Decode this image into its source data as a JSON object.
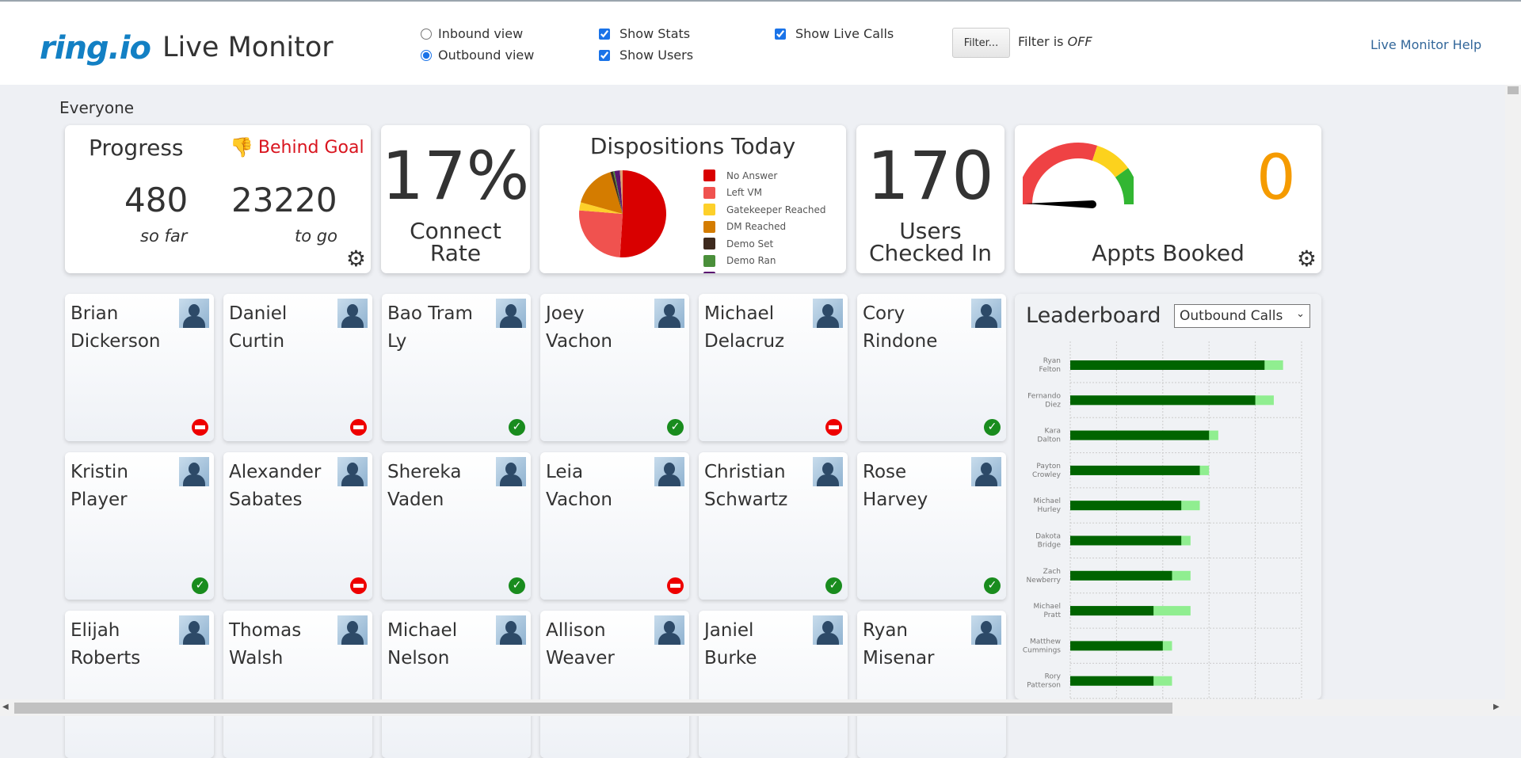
{
  "header": {
    "logo": "ring.io",
    "title": "Live Monitor",
    "inbound_label": "Inbound view",
    "outbound_label": "Outbound view",
    "view_selected": "outbound",
    "show_stats_label": "Show Stats",
    "show_users_label": "Show Users",
    "show_live_calls_label": "Show Live Calls",
    "show_stats": true,
    "show_users": true,
    "show_live_calls": true,
    "filter_button": "Filter...",
    "filter_status_prefix": "Filter is",
    "filter_status_value": "OFF",
    "help_link": "Live Monitor Help"
  },
  "group_label": "Everyone",
  "progress": {
    "title": "Progress",
    "status": "Behind Goal",
    "so_far": "480",
    "so_far_label": "so far",
    "to_go": "23220",
    "to_go_label": "to go",
    "status_color": "#d9141e"
  },
  "connect_rate": {
    "value": "17%",
    "label_line1": "Connect",
    "label_line2": "Rate"
  },
  "dispositions": {
    "title": "Dispositions Today"
  },
  "users_checked_in": {
    "value": "170",
    "label_line1": "Users",
    "label_line2": "Checked In"
  },
  "appts": {
    "value": "0",
    "label": "Appts Booked",
    "value_color": "#f59b00",
    "gauge_level": 0
  },
  "chart_data": [
    {
      "type": "pie",
      "title": "Dispositions Today",
      "legend": "right",
      "series": [
        {
          "name": "No Answer",
          "value": 50.5,
          "color": "#d90000"
        },
        {
          "name": "Left VM",
          "value": 25,
          "color": "#f0524f"
        },
        {
          "name": "Gatekeeper Reached",
          "value": 3,
          "color": "#fdd02a"
        },
        {
          "name": "DM Reached",
          "value": 16,
          "color": "#d47c00"
        },
        {
          "name": "Demo Set",
          "value": 1,
          "color": "#3e2a1e"
        },
        {
          "name": "Demo Ran",
          "value": 0.5,
          "color": "#4a8f3a"
        },
        {
          "name": "",
          "value": 2,
          "color": "#5a1470"
        },
        {
          "name": "",
          "value": 1,
          "color": "#e0a070"
        }
      ]
    },
    {
      "type": "bar",
      "orientation": "horizontal",
      "title": "Leaderboard",
      "grid": true,
      "xlim": [
        0,
        5
      ],
      "categories": [
        [
          "Ryan",
          "Felton"
        ],
        [
          "Fernando",
          "Diez"
        ],
        [
          "Kara",
          "Dalton"
        ],
        [
          "Payton",
          "Crowley"
        ],
        [
          "Michael",
          "Hurley"
        ],
        [
          "Dakota",
          "Bridge"
        ],
        [
          "Zach",
          "Newberry"
        ],
        [
          "Michael",
          "Pratt"
        ],
        [
          "Matthew",
          "Cummings"
        ],
        [
          "Rory",
          "Patterson"
        ]
      ],
      "series": [
        {
          "color": "#006400",
          "values": [
            4.2,
            4.0,
            3.0,
            2.8,
            2.4,
            2.4,
            2.2,
            1.8,
            2.0,
            1.8
          ]
        },
        {
          "color": "#90ee90",
          "values": [
            4.6,
            4.4,
            3.2,
            3.0,
            2.8,
            2.6,
            2.6,
            2.6,
            2.2,
            2.2
          ]
        }
      ]
    }
  ],
  "leaderboard": {
    "title": "Leaderboard",
    "metric": "Outbound Calls"
  },
  "users": [
    {
      "first": "Brian",
      "last": "Dickerson",
      "status": "red"
    },
    {
      "first": "Daniel",
      "last": "Curtin",
      "status": "red"
    },
    {
      "first": "Bao Tram",
      "last": "Ly",
      "status": "green"
    },
    {
      "first": "Joey",
      "last": "Vachon",
      "status": "green"
    },
    {
      "first": "Michael",
      "last": "Delacruz",
      "status": "red"
    },
    {
      "first": "Cory",
      "last": "Rindone",
      "status": "green"
    },
    {
      "first": "Kristin",
      "last": "Player",
      "status": "green"
    },
    {
      "first": "Alexander",
      "last": "Sabates",
      "status": "red"
    },
    {
      "first": "Shereka",
      "last": "Vaden",
      "status": "green"
    },
    {
      "first": "Leia",
      "last": "Vachon",
      "status": "red"
    },
    {
      "first": "Christian",
      "last": "Schwartz",
      "status": "green"
    },
    {
      "first": "Rose",
      "last": "Harvey",
      "status": "green"
    },
    {
      "first": "Elijah",
      "last": "Roberts",
      "status": ""
    },
    {
      "first": "Thomas",
      "last": "Walsh",
      "status": ""
    },
    {
      "first": "Michael",
      "last": "Nelson",
      "status": ""
    },
    {
      "first": "Allison",
      "last": "Weaver",
      "status": ""
    },
    {
      "first": "Janiel",
      "last": "Burke",
      "status": ""
    },
    {
      "first": "Ryan",
      "last": "Misenar",
      "status": ""
    }
  ]
}
